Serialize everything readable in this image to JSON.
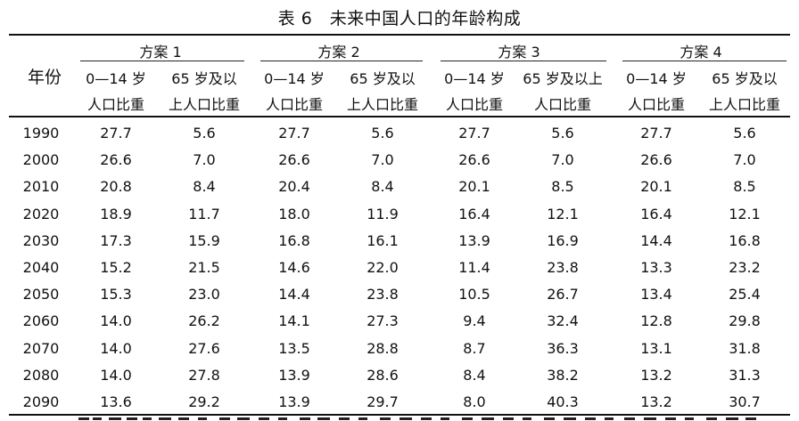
{
  "title": "表 6　未来中国人口的年龄构成",
  "header": {
    "year": "年份",
    "schemes": [
      "方案 1",
      "方案 2",
      "方案 3",
      "方案 4"
    ],
    "col_l1": [
      "0—14 岁",
      "65 岁及以",
      "0—14 岁",
      "65 岁及以",
      "0—14 岁",
      "65 岁及以上",
      "0—14 岁",
      "65 岁及以"
    ],
    "col_l2": [
      "人口比重",
      "上人口比重",
      "人口比重",
      "上人口比重",
      "人口比重",
      "人口比重",
      "人口比重",
      "上人口比重"
    ]
  },
  "rows": [
    {
      "year": "1990",
      "v": [
        "27.7",
        "5.6",
        "27.7",
        "5.6",
        "27.7",
        "5.6",
        "27.7",
        "5.6"
      ]
    },
    {
      "year": "2000",
      "v": [
        "26.6",
        "7.0",
        "26.6",
        "7.0",
        "26.6",
        "7.0",
        "26.6",
        "7.0"
      ]
    },
    {
      "year": "2010",
      "v": [
        "20.8",
        "8.4",
        "20.4",
        "8.4",
        "20.1",
        "8.5",
        "20.1",
        "8.5"
      ]
    },
    {
      "year": "2020",
      "v": [
        "18.9",
        "11.7",
        "18.0",
        "11.9",
        "16.4",
        "12.1",
        "16.4",
        "12.1"
      ]
    },
    {
      "year": "2030",
      "v": [
        "17.3",
        "15.9",
        "16.8",
        "16.1",
        "13.9",
        "16.9",
        "14.4",
        "16.8"
      ]
    },
    {
      "year": "2040",
      "v": [
        "15.2",
        "21.5",
        "14.6",
        "22.0",
        "11.4",
        "23.8",
        "13.3",
        "23.2"
      ]
    },
    {
      "year": "2050",
      "v": [
        "15.3",
        "23.0",
        "14.4",
        "23.8",
        "10.5",
        "26.7",
        "13.4",
        "25.4"
      ]
    },
    {
      "year": "2060",
      "v": [
        "14.0",
        "26.2",
        "14.1",
        "27.3",
        "9.4",
        "32.4",
        "12.8",
        "29.8"
      ]
    },
    {
      "year": "2070",
      "v": [
        "14.0",
        "27.6",
        "13.5",
        "28.8",
        "8.7",
        "36.3",
        "13.1",
        "31.8"
      ]
    },
    {
      "year": "2080",
      "v": [
        "14.0",
        "27.8",
        "13.9",
        "28.6",
        "8.4",
        "38.2",
        "13.2",
        "31.3"
      ]
    },
    {
      "year": "2090",
      "v": [
        "13.6",
        "29.2",
        "13.9",
        "29.7",
        "8.0",
        "40.3",
        "13.2",
        "30.7"
      ]
    }
  ]
}
